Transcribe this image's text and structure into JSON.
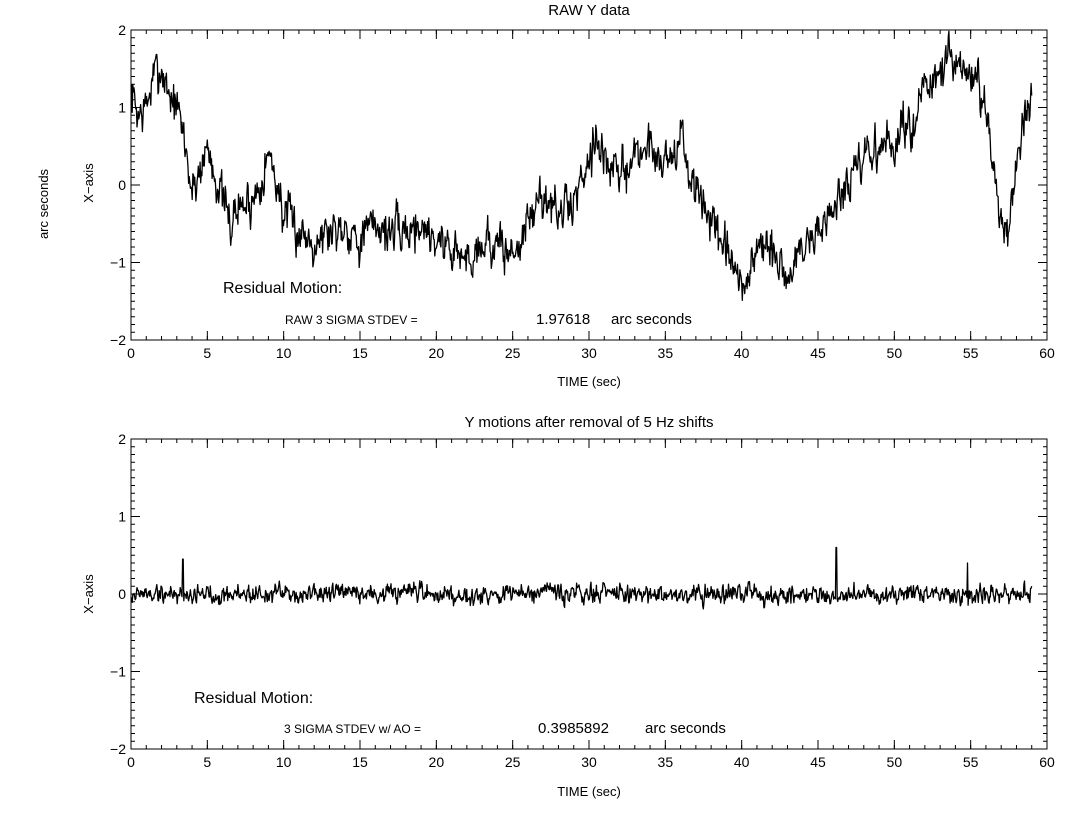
{
  "chart_data": [
    {
      "type": "line",
      "title": "RAW Y data",
      "xlabel": "TIME  (sec)",
      "ylabel": "X−axis",
      "outer_ylabel": "arc seconds",
      "xlim": [
        0,
        60
      ],
      "ylim": [
        -2,
        2
      ],
      "x_ticks": [
        0,
        5,
        10,
        15,
        20,
        25,
        30,
        35,
        40,
        45,
        50,
        55,
        60
      ],
      "x_tick_labels": [
        "0",
        "5",
        "10",
        "15",
        "20",
        "25",
        "30",
        "35",
        "40",
        "45",
        "50",
        "55",
        "60"
      ],
      "y_ticks": [
        -2,
        -1,
        0,
        1,
        2
      ],
      "y_tick_labels": [
        "−2",
        "−1",
        "0",
        "1",
        "2"
      ],
      "grid": false,
      "legend": "none",
      "annotations": {
        "heading": "Residual Motion:",
        "stat_label": "RAW 3 SIGMA STDEV =",
        "stat_value": "1.97618",
        "stat_unit": "arc seconds"
      },
      "series": [
        {
          "x": [
            0,
            0.5,
            1,
            1.5,
            2,
            2.5,
            3,
            3.5,
            4,
            5,
            6,
            6.5,
            7,
            8,
            9,
            9.5,
            10,
            11,
            12,
            13,
            14,
            15,
            16,
            17,
            18,
            19,
            20,
            21,
            22,
            23,
            24,
            25,
            26,
            27,
            28,
            29,
            30,
            30.5,
            31,
            32,
            33,
            34,
            35,
            36,
            36.5,
            37,
            38,
            38.5,
            39,
            39.5,
            40,
            41,
            42,
            43,
            44,
            45,
            46,
            47,
            48,
            49,
            50,
            51,
            52,
            53,
            53.5,
            54,
            55,
            55.5,
            56,
            56.5,
            57,
            57.5,
            58,
            58.5,
            59
          ],
          "y": [
            1.2,
            0.9,
            1.0,
            1.4,
            1.5,
            1.2,
            1.0,
            0.6,
            -0.1,
            0.5,
            -0.2,
            -0.5,
            -0.3,
            -0.2,
            0.4,
            0.1,
            -0.4,
            -0.6,
            -0.7,
            -0.6,
            -0.5,
            -0.7,
            -0.5,
            -0.6,
            -0.6,
            -0.5,
            -0.7,
            -0.8,
            -1.0,
            -0.7,
            -0.8,
            -0.9,
            -0.5,
            -0.1,
            -0.4,
            -0.2,
            0.4,
            0.7,
            0.3,
            0.1,
            0.4,
            0.5,
            0.3,
            0.6,
            0.2,
            -0.1,
            -0.4,
            -0.8,
            -0.9,
            -1.1,
            -1.4,
            -0.8,
            -0.9,
            -1.2,
            -0.8,
            -0.6,
            -0.3,
            0.0,
            0.3,
            0.5,
            0.5,
            0.8,
            1.2,
            1.4,
            1.6,
            1.5,
            1.4,
            1.3,
            0.8,
            0.2,
            -0.4,
            -0.5,
            0.3,
            0.8,
            1.0
          ],
          "noise_amplitude": 0.3
        }
      ]
    },
    {
      "type": "line",
      "title": "Y motions after removal of 5 Hz shifts",
      "xlabel": "TIME  (sec)",
      "ylabel": "X−axis",
      "xlim": [
        0,
        60
      ],
      "ylim": [
        -2,
        2
      ],
      "x_ticks": [
        0,
        5,
        10,
        15,
        20,
        25,
        30,
        35,
        40,
        45,
        50,
        55,
        60
      ],
      "x_tick_labels": [
        "0",
        "5",
        "10",
        "15",
        "20",
        "25",
        "30",
        "35",
        "40",
        "45",
        "50",
        "55",
        "60"
      ],
      "y_ticks": [
        -2,
        -1,
        0,
        1,
        2
      ],
      "y_tick_labels": [
        "−2",
        "−1",
        "0",
        "1",
        "2"
      ],
      "grid": false,
      "legend": "none",
      "annotations": {
        "heading": "Residual Motion:",
        "stat_label": "3 SIGMA STDEV w/ AO =",
        "stat_value": "0.3985892",
        "stat_unit": "arc seconds"
      },
      "series": [
        {
          "x": [
            0,
            59
          ],
          "y": [
            0.0,
            0.0
          ],
          "noise_amplitude": 0.13,
          "peaks": [
            {
              "x": 46.2,
              "y": 0.6
            },
            {
              "x": 3.4,
              "y": 0.45
            },
            {
              "x": 54.8,
              "y": 0.4
            }
          ]
        }
      ]
    }
  ]
}
